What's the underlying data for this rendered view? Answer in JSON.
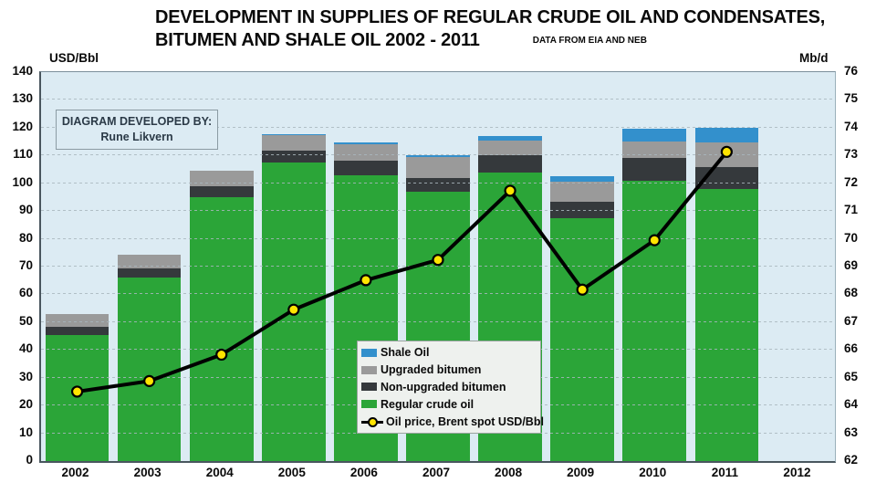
{
  "title": {
    "line1": "DEVELOPMENT IN SUPPLIES OF REGULAR CRUDE OIL AND CONDENSATES,",
    "line2": "BITUMEN AND SHALE OIL 2002 - 2011",
    "source": "DATA FROM EIA AND NEB"
  },
  "credit_box": {
    "line1": "DIAGRAM DEVELOPED BY:",
    "line2": "Rune Likvern"
  },
  "legend": {
    "items": [
      {
        "label": "Shale Oil",
        "type": "bar",
        "color": "#3390cc"
      },
      {
        "label": "Upgraded bitumen",
        "type": "bar",
        "color": "#9a9a9a"
      },
      {
        "label": "Non-upgraded bitumen",
        "type": "bar",
        "color": "#35393c"
      },
      {
        "label": "Regular crude oil",
        "type": "bar",
        "color": "#2ba538"
      },
      {
        "label": "Oil price, Brent spot USD/Bbl",
        "type": "line",
        "color": "#000000",
        "marker_color": "#ffe400"
      }
    ]
  },
  "colors": {
    "plot_background": "#dcebf3",
    "page_background": "#ffffff",
    "gridline": "#a9b7be",
    "price_line": "#000000",
    "price_marker": "#ffe400",
    "shale_oil": "#3390cc",
    "upgraded_bitumen": "#9a9a9a",
    "non_upgraded_bitumen": "#35393c",
    "regular_crude": "#2ba538"
  },
  "chart_data": {
    "type": "bar",
    "subtype": "stacked-bars-with-line-overlay",
    "title": "DEVELOPMENT IN SUPPLIES OF REGULAR CRUDE OIL AND CONDENSATES, BITUMEN AND SHALE OIL 2002 - 2011",
    "categories": [
      "2002",
      "2003",
      "2004",
      "2005",
      "2006",
      "2007",
      "2008",
      "2009",
      "2010",
      "2011",
      "2012"
    ],
    "bar_series_bottom_to_top": [
      {
        "name": "Regular crude oil",
        "color": "#2ba538",
        "values_usd_axis": [
          45.2,
          66,
          95,
          107.5,
          103,
          97,
          104,
          87.5,
          101,
          98,
          null
        ]
      },
      {
        "name": "Non-upgraded bitumen",
        "color": "#35393c",
        "values_usd_axis": [
          3.1,
          3.5,
          4,
          4.3,
          5,
          5,
          6,
          5.8,
          8,
          7.8,
          null
        ]
      },
      {
        "name": "Upgraded bitumen",
        "color": "#9a9a9a",
        "values_usd_axis": [
          4.5,
          4.7,
          5.5,
          5.5,
          6,
          7.3,
          5.3,
          7.2,
          6,
          8.9,
          null
        ]
      },
      {
        "name": "Shale Oil",
        "color": "#3390cc",
        "values_usd_axis": [
          0,
          0,
          0,
          0.5,
          0.7,
          0.7,
          1.7,
          2,
          4.7,
          5.3,
          null
        ]
      }
    ],
    "stack_totals_usd_axis": [
      52.8,
      74.2,
      104.5,
      117.8,
      114.7,
      110,
      117,
      102.5,
      119.7,
      120,
      null
    ],
    "line_series": {
      "name": "Oil price, Brent spot USD/Bbl",
      "color": "#000000",
      "marker_color": "#ffe400",
      "values_usd_per_bbl": [
        25,
        28.8,
        38.3,
        54.5,
        65.1,
        72.4,
        97.3,
        61.7,
        79.5,
        111.3,
        null
      ]
    },
    "left_axis": {
      "title": "USD/Bbl",
      "min": 0,
      "max": 140,
      "step": 10,
      "ticks": [
        0,
        10,
        20,
        30,
        40,
        50,
        60,
        70,
        80,
        90,
        100,
        110,
        120,
        130,
        140
      ]
    },
    "right_axis": {
      "title": "Mb/d",
      "min": 62,
      "max": 76,
      "step": 1,
      "ticks": [
        62,
        63,
        64,
        65,
        66,
        67,
        68,
        69,
        70,
        71,
        72,
        73,
        74,
        75,
        76
      ]
    },
    "axis_note": "Bars are read on the right axis: Mb/d = 62 + (left-axis value)/10; line is read on the left USD/Bbl axis",
    "grid": true,
    "legend_position": "inside-center-bottom"
  }
}
